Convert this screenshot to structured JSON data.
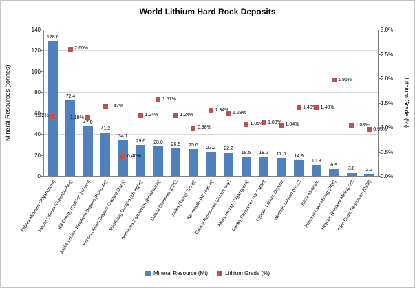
{
  "chart_data": {
    "type": "bar",
    "title": "World Lithium Hard Rock Deposits",
    "categories": [
      "Pilbara Minerals (Pilgangoora)",
      "Talison Lithium (Greenbushes)",
      "RB Energy (Quebec Lithium)",
      "Jiajika Lithium-Beryllium Deposit (Rong Jie)",
      "Yichun Lithium Deposit (Jiangte Dianji)",
      "Maerkang Dangba (Zhonghe)",
      "Nemaska Exploration (Whabouchi)",
      "Critical Elements (CEE)",
      "Jiajika (Tianqi Group)",
      "Neometals (Mt Marion)",
      "Galaxy Resources (James Bay)",
      "Altura Mining (Pilgangoora)",
      "Galaxy Resources (Mt Cattlin)",
      "Lijiagou Lithium Deposit",
      "Western Lithium (WLC)",
      "Bikita Minerals",
      "Houston Lake Mining (PAK)",
      "Heyuan (Western Mining Co)",
      "Glen Eagle Resources (GER)"
    ],
    "series": [
      {
        "name": "Mineral Resource (Mt)",
        "chart_type": "column",
        "axis": "left",
        "color": "#4f81bd",
        "values": [
          128.6,
          72.4,
          47.0,
          41.2,
          34.1,
          29.6,
          28.0,
          26.5,
          25.6,
          23.2,
          22.2,
          18.5,
          18.2,
          17.0,
          14.9,
          10.8,
          6.9,
          3.0,
          2.2
        ],
        "labels": [
          "128.6",
          "72.4",
          "47.0",
          "41.2",
          "34.1",
          "29.6",
          "28.0",
          "26.5",
          "25.6",
          "23.2",
          "22.2",
          "18.5",
          "18.2",
          "17.0",
          "14.9",
          "10.8",
          "6.9",
          "3.0",
          "2.2"
        ]
      },
      {
        "name": "Lithium Grade (%)",
        "chart_type": "scatter",
        "marker": "square",
        "axis": "right",
        "color": "#c0504d",
        "values": [
          1.22,
          2.6,
          1.19,
          1.42,
          0.4,
          1.24,
          1.57,
          1.24,
          0.98,
          1.34,
          1.28,
          1.05,
          1.09,
          1.04,
          1.4,
          1.4,
          1.96,
          1.03,
          0.95
        ],
        "labels": [
          "1.22%",
          "2.60%",
          "1.19%",
          "1.42%",
          "0.40%",
          "1.24%",
          "1.57%",
          "1.24%",
          "0.98%",
          "1.34%",
          "1.28%",
          "1.05%",
          "1.09%",
          "1.04%",
          "1.40%",
          "1.40%",
          "1.96%",
          "1.03%",
          "0.95%"
        ],
        "label_sides": [
          "left",
          "right",
          "left",
          "right",
          "right",
          "right",
          "right",
          "right",
          "right",
          "right",
          "right",
          "right",
          "right",
          "right",
          "right",
          "right",
          "right",
          "right",
          "right"
        ]
      }
    ],
    "left_axis": {
      "label": "Mineral Resources (tonnes)",
      "min": 0,
      "max": 140,
      "step": 20,
      "ticks": [
        "0",
        "20",
        "40",
        "60",
        "80",
        "100",
        "120",
        "140"
      ]
    },
    "right_axis": {
      "label": "Lithium Grade (%)",
      "min": 0,
      "max": 3.0,
      "step": 0.5,
      "ticks": [
        "0.0%",
        "0.5%",
        "1.0%",
        "1.5%",
        "2.0%",
        "2.5%",
        "3.0%"
      ]
    },
    "grid": true,
    "legend_position": "bottom"
  }
}
